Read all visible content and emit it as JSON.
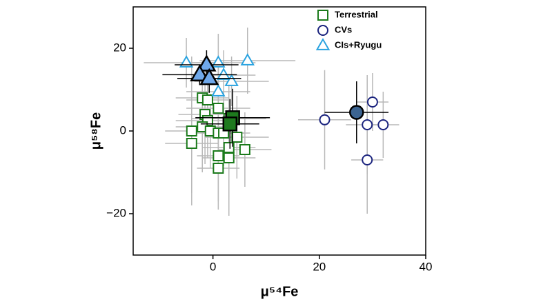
{
  "chart_data": {
    "type": "scatter",
    "x_label": "μ⁵⁴Fe",
    "y_label": "μ⁵⁸Fe",
    "xlim": [
      -15,
      40
    ],
    "ylim": [
      -30,
      30
    ],
    "xticks": [
      0,
      20,
      40
    ],
    "yticks": [
      {
        "value": -20,
        "label": "−20"
      },
      0,
      20
    ],
    "error_color": "#b8b8b8",
    "mean_error_color": "#000000",
    "legend": "upper right",
    "series": [
      {
        "name": "Terrestrial",
        "marker": "square",
        "color": "#1b7a1b",
        "x": [
          -2,
          -1,
          1,
          -1.5,
          3,
          -1,
          -2,
          -4,
          -0.5,
          1,
          -4,
          2,
          4.5,
          3,
          6,
          1,
          3,
          1
        ],
        "y": [
          8,
          7.5,
          5.5,
          4,
          3,
          2.5,
          1,
          0,
          0,
          -0.5,
          -3,
          -0.5,
          -1.5,
          -4,
          -4.5,
          -6,
          -6.5,
          -9
        ],
        "xerr": [
          5,
          4,
          6,
          5,
          7,
          6,
          5,
          5,
          4,
          6,
          5,
          4,
          6,
          5,
          5,
          4,
          5,
          4
        ],
        "yerr": [
          9,
          8,
          10,
          12,
          8,
          9,
          11,
          18,
          9,
          10,
          12,
          8,
          10,
          12,
          9,
          11,
          14,
          10
        ],
        "mean": {
          "x": [
            3.7,
            3.2
          ],
          "y": [
            3.2,
            1.7
          ],
          "xerr": [
            7,
            5.5
          ],
          "yerr": [
            7,
            6
          ],
          "fill": "#1e7a1e"
        }
      },
      {
        "name": "CVs",
        "marker": "circle",
        "color": "#1a237e",
        "x": [
          21,
          30,
          29,
          32,
          29
        ],
        "y": [
          2.7,
          7,
          1.5,
          1.5,
          -7
        ],
        "xerr": [
          5,
          3,
          4,
          3,
          3
        ],
        "yerr": [
          12,
          7,
          12,
          8,
          13
        ],
        "mean": {
          "x": [
            27
          ],
          "y": [
            4.5
          ],
          "xerr": [
            6
          ],
          "yerr": [
            7.5
          ],
          "fill": "#3c6491"
        }
      },
      {
        "name": "CIs+Ryugu",
        "marker": "triangle",
        "color": "#2aa3e0",
        "x": [
          -5,
          1,
          6.5,
          2,
          3.5,
          1
        ],
        "y": [
          16.5,
          16.5,
          17,
          13.5,
          12,
          9.5
        ],
        "xerr": [
          8,
          7,
          9,
          6,
          7,
          6
        ],
        "yerr": [
          6,
          7,
          8,
          6,
          6,
          7
        ],
        "mean": {
          "x": [
            -1.2,
            -2.5,
            -0.7
          ],
          "y": [
            16,
            13.6,
            12.7
          ],
          "xerr": [
            6,
            7,
            6
          ],
          "yerr": [
            3.5,
            2.5,
            3.5
          ],
          "fill": "#6fa8ea"
        }
      }
    ]
  }
}
